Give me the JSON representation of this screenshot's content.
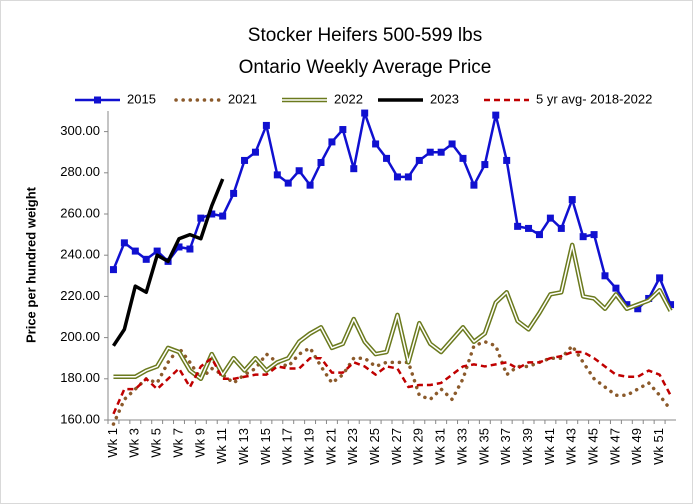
{
  "chart_data": {
    "type": "line",
    "title": [
      "Stocker Heifers 500-599 lbs",
      "Ontario Weekly Average  Price"
    ],
    "y_label": "Price per hundred weight",
    "categories": [
      "Wk 1",
      null,
      "Wk 3",
      null,
      "Wk 5",
      null,
      "Wk 7",
      null,
      "Wk 9",
      null,
      "Wk 11",
      null,
      "Wk 13",
      null,
      "Wk 15",
      null,
      "Wk 17",
      null,
      "Wk 19",
      null,
      "Wk 21",
      null,
      "Wk 23",
      null,
      "Wk 25",
      null,
      "Wk 27",
      null,
      "Wk 29",
      null,
      "Wk 31",
      null,
      "Wk 33",
      null,
      "Wk 35",
      null,
      "Wk 37",
      null,
      "Wk 39",
      null,
      "Wk 41",
      null,
      "Wk 43",
      null,
      "Wk 45",
      null,
      "Wk 47",
      null,
      "Wk 49",
      null,
      "Wk 51",
      null
    ],
    "ylim": [
      160,
      310
    ],
    "yticks": [
      {
        "value": 160,
        "label": "160.00"
      },
      {
        "value": 180,
        "label": "180.00"
      },
      {
        "value": 200,
        "label": "200.00"
      },
      {
        "value": 220,
        "label": "220.00"
      },
      {
        "value": 240,
        "label": "240.00"
      },
      {
        "value": 260,
        "label": "260.00"
      },
      {
        "value": 280,
        "label": "280.00"
      },
      {
        "value": 300,
        "label": "300.00"
      }
    ],
    "grid": false,
    "legend": "top",
    "series": [
      {
        "name": "2015",
        "color": "#1010d0",
        "style": "marker",
        "values": [
          233,
          246,
          242,
          238,
          242,
          237,
          244,
          243,
          258,
          260,
          259,
          270,
          286,
          290,
          303,
          279,
          275,
          281,
          274,
          285,
          295,
          301,
          282,
          309,
          294,
          287,
          278,
          278,
          286,
          290,
          290,
          294,
          287,
          274,
          284,
          308,
          286,
          254,
          253,
          250,
          258,
          253,
          267,
          249,
          250,
          230,
          224,
          216,
          214,
          219,
          229,
          216
        ]
      },
      {
        "name": "2021",
        "color": "#8b5a2b",
        "style": "dotted",
        "values": [
          158,
          170,
          175,
          180,
          178,
          188,
          195,
          188,
          180,
          185,
          182,
          178,
          182,
          185,
          192,
          188,
          186,
          192,
          195,
          186,
          178,
          182,
          190,
          190,
          186,
          188,
          188,
          188,
          172,
          170,
          175,
          170,
          180,
          196,
          198,
          196,
          182,
          186,
          186,
          188,
          190,
          190,
          196,
          188,
          180,
          176,
          172,
          172,
          175,
          178,
          172,
          165
        ]
      },
      {
        "name": "2022",
        "color": "#6b7a1e",
        "style": "double",
        "values": [
          181,
          181,
          181,
          184,
          186,
          195,
          193,
          184,
          180,
          192,
          182,
          190,
          184,
          190,
          184,
          188,
          190,
          198,
          202,
          205,
          195,
          197,
          209,
          198,
          192,
          193,
          211,
          188,
          207,
          197,
          193,
          199,
          205,
          198,
          202,
          217,
          222,
          208,
          204,
          212,
          221,
          222,
          245,
          220,
          219,
          214,
          221,
          214,
          216,
          218,
          223,
          213
        ]
      },
      {
        "name": "2023",
        "color": "#000000",
        "style": "solid",
        "values": [
          196,
          204,
          225,
          222,
          240,
          237,
          248,
          250,
          248,
          264,
          277,
          null,
          null,
          null,
          null,
          null,
          null,
          null,
          null,
          null,
          null,
          null,
          null,
          null,
          null,
          null,
          null,
          null,
          null,
          null,
          null,
          null,
          null,
          null,
          null,
          null,
          null,
          null,
          null,
          null,
          null,
          null,
          null,
          null,
          null,
          null,
          null,
          null,
          null,
          null,
          null,
          null
        ]
      },
      {
        "name": "5 yr avg- 2018-2022",
        "color": "#c00000",
        "style": "dashed",
        "values": [
          163,
          175,
          175,
          180,
          175,
          180,
          185,
          176,
          186,
          190,
          180,
          180,
          181,
          182,
          182,
          186,
          185,
          185,
          190,
          190,
          183,
          183,
          188,
          186,
          182,
          186,
          185,
          176,
          177,
          177,
          178,
          182,
          186,
          187,
          186,
          187,
          188,
          185,
          188,
          188,
          190,
          191,
          193,
          193,
          190,
          186,
          182,
          181,
          181,
          184,
          182,
          172
        ]
      }
    ]
  }
}
